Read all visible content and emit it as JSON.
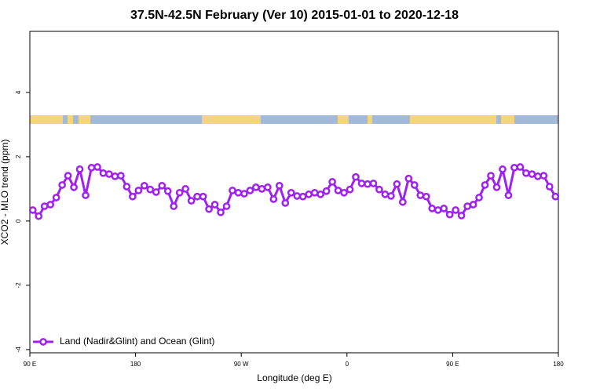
{
  "chart_data": {
    "type": "line",
    "title": "37.5N-42.5N February (Ver 10)   2015-01-01 to 2020-12-18",
    "x_label": "Longitude (deg E)",
    "y_label": "XCO2 - MLO trend (ppm)",
    "xlim": [
      90,
      540
    ],
    "ylim": [
      -4.1,
      5.9
    ],
    "xticks": [
      {
        "value": 90,
        "label": "90 E"
      },
      180,
      {
        "value": 270,
        "label": "90 W"
      },
      {
        "value": 360,
        "label": "0"
      },
      {
        "value": 450,
        "label": "90 E"
      },
      {
        "value": 540,
        "label": "180"
      }
    ],
    "yticks": [
      -4,
      -2,
      0,
      2,
      4
    ],
    "legend": "bottom-left",
    "series": [
      {
        "name": "Land (Nadir&Glint) and Ocean (Glint)",
        "color": "#a020f0",
        "x": [
          92.5,
          97.5,
          102.5,
          107.5,
          112.5,
          117.5,
          122.5,
          127.5,
          132.5,
          137.5,
          142.5,
          147.5,
          152.5,
          157.5,
          162.5,
          167.5,
          172.5,
          177.5,
          182.5,
          187.5,
          192.5,
          197.5,
          202.5,
          207.5,
          212.5,
          217.5,
          222.5,
          227.5,
          232.5,
          237.5,
          242.5,
          247.5,
          252.5,
          257.5,
          262.5,
          267.5,
          272.5,
          277.5,
          282.5,
          287.5,
          292.5,
          297.5,
          302.5,
          307.5,
          312.5,
          317.5,
          322.5,
          327.5,
          332.5,
          337.5,
          342.5,
          347.5,
          352.5,
          357.5,
          362.5,
          367.5,
          372.5,
          377.5,
          382.5,
          387.5,
          392.5,
          397.5,
          402.5,
          407.5,
          412.5,
          417.5,
          422.5,
          427.5,
          432.5,
          437.5,
          442.5,
          447.5,
          452.5,
          457.5,
          462.5,
          467.5,
          472.5,
          477.5,
          482.5,
          487.5,
          492.5,
          497.5,
          502.5,
          507.5,
          512.5,
          517.5,
          522.5,
          527.5,
          532.5,
          537.5
        ],
        "values": [
          0.34,
          0.15,
          0.46,
          0.51,
          0.73,
          1.12,
          1.41,
          1.05,
          1.61,
          0.8,
          1.66,
          1.68,
          1.49,
          1.46,
          1.39,
          1.41,
          1.07,
          0.76,
          0.95,
          1.1,
          0.98,
          0.9,
          1.1,
          0.93,
          0.46,
          0.88,
          1.0,
          0.63,
          0.76,
          0.76,
          0.37,
          0.51,
          0.27,
          0.46,
          0.95,
          0.88,
          0.85,
          0.95,
          1.05,
          1.0,
          1.05,
          0.68,
          1.1,
          0.56,
          0.88,
          0.78,
          0.76,
          0.83,
          0.88,
          0.83,
          0.93,
          1.22,
          0.95,
          0.88,
          0.98,
          1.37,
          1.17,
          1.15,
          1.17,
          0.98,
          0.83,
          0.78,
          1.15,
          0.59,
          1.32,
          1.12,
          0.8,
          0.76,
          0.39,
          0.34,
          0.39,
          0.2,
          0.34,
          0.17,
          0.46,
          0.51,
          0.73,
          1.12,
          1.41,
          1.05,
          1.61,
          0.8,
          1.66,
          1.68,
          1.49,
          1.46,
          1.39,
          1.41,
          1.07,
          0.76
        ]
      }
    ]
  }
}
